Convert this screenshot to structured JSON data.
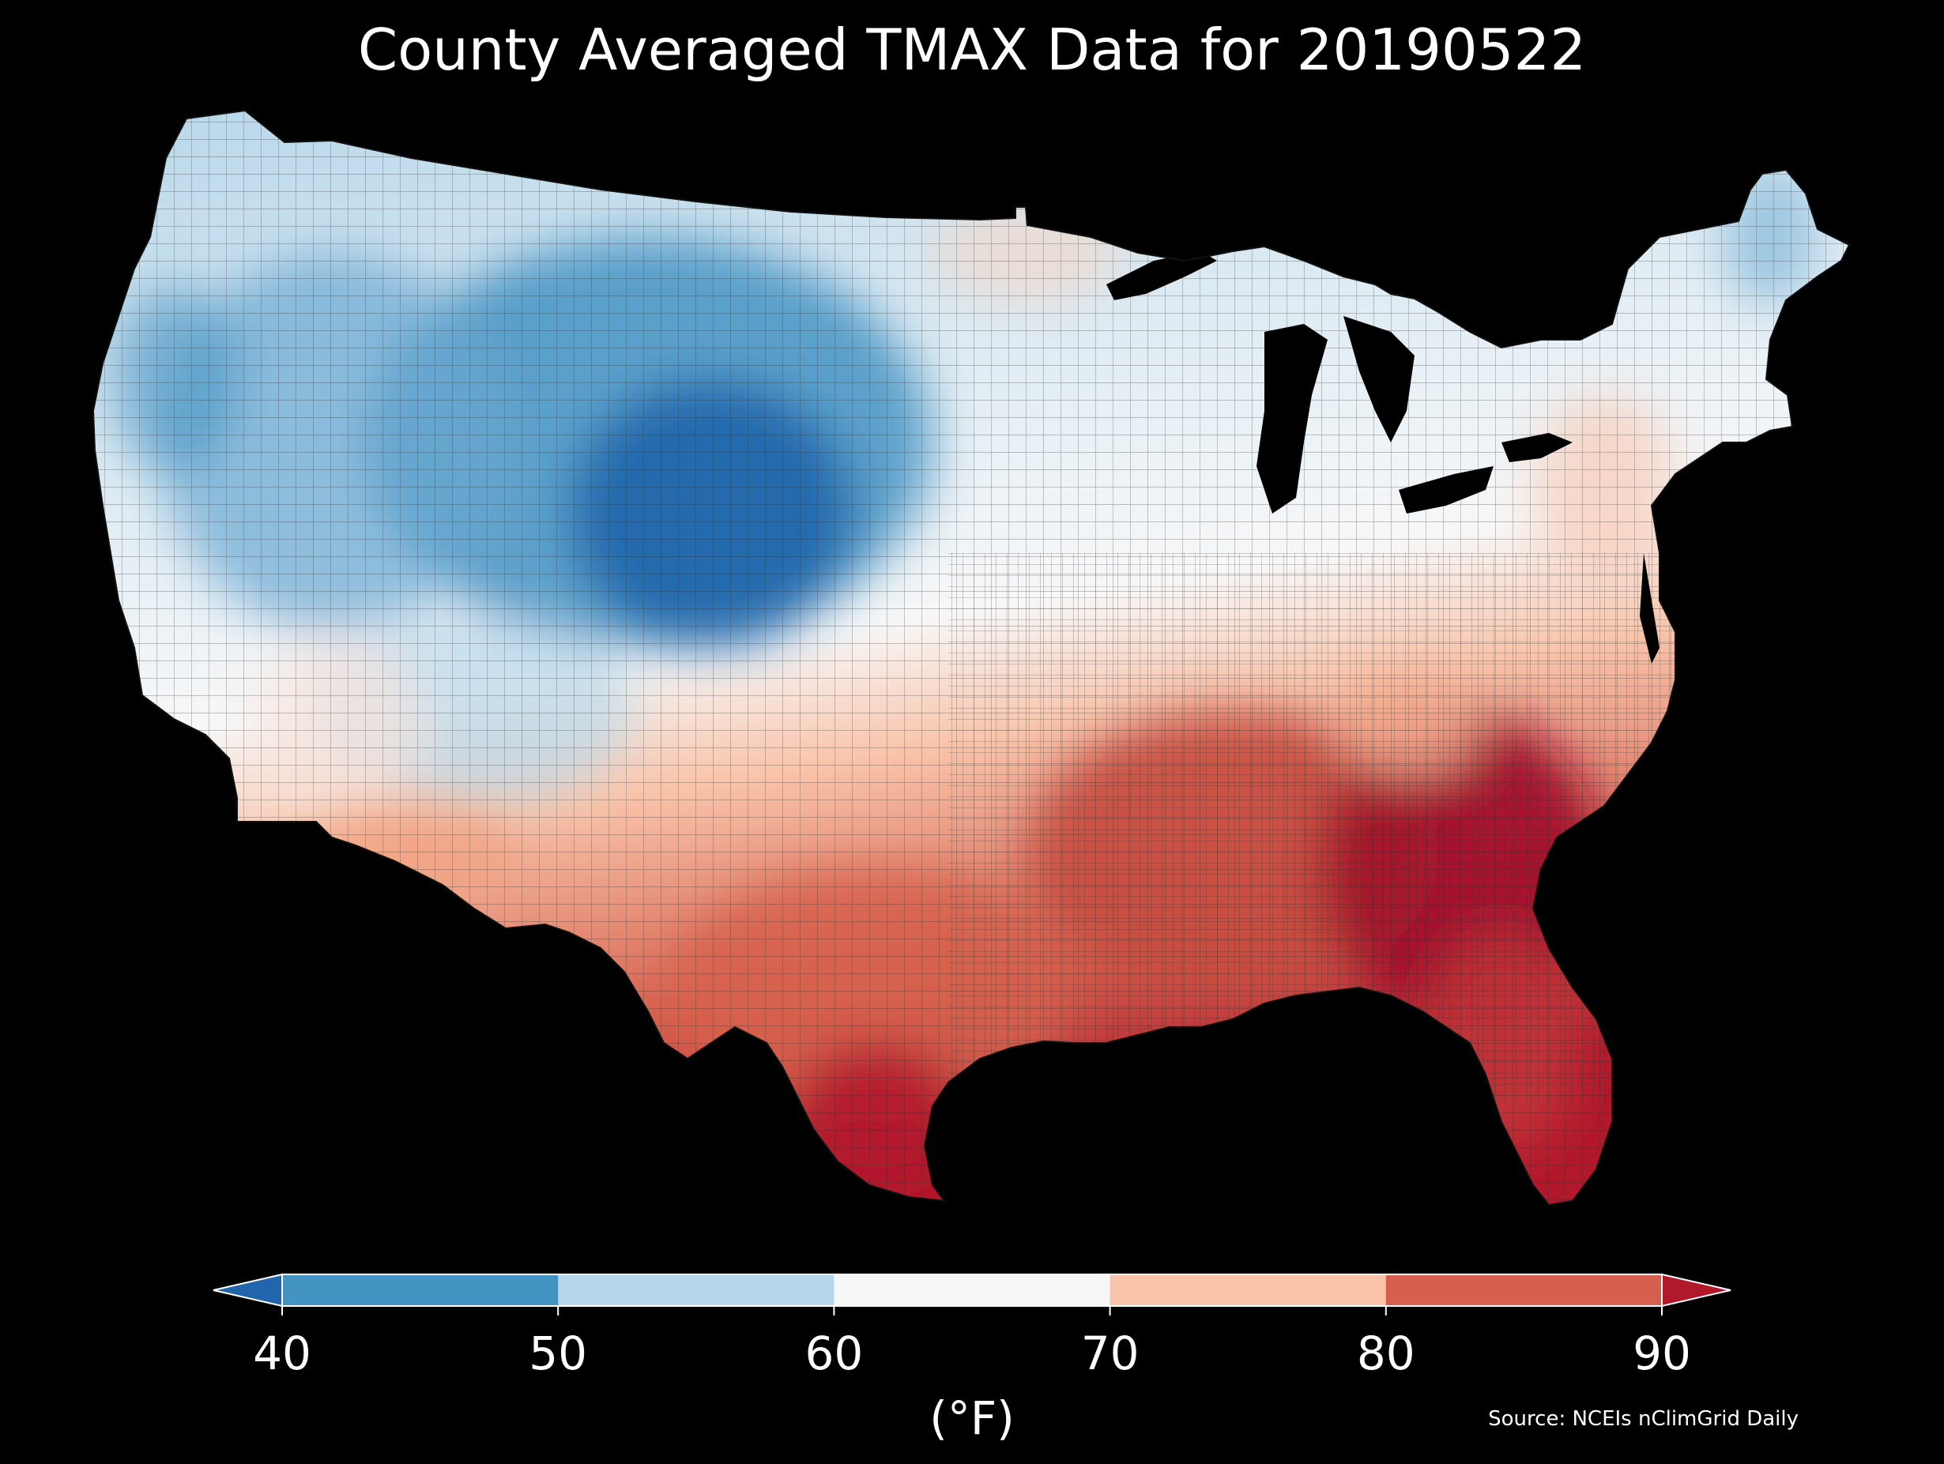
{
  "title": "County Averaged TMAX Data for 20190522",
  "colorbar": {
    "ticks": [
      "40",
      "50",
      "60",
      "70",
      "80",
      "90"
    ],
    "unit": "(°F)",
    "bins": [
      {
        "range": "<40",
        "color": "#2166ac"
      },
      {
        "range": "40-50",
        "color": "#4393c3"
      },
      {
        "range": "50-60",
        "color": "#b6d7ea"
      },
      {
        "range": "60-70",
        "color": "#f7f7f7"
      },
      {
        "range": "70-80",
        "color": "#f9c4a9"
      },
      {
        "range": "80-90",
        "color": "#d6604d"
      },
      {
        "range": ">90",
        "color": "#b2182b"
      }
    ]
  },
  "source": "Source: NCEIs nClimGrid Daily",
  "map": {
    "region": "Contiguous United States counties",
    "background": "#000000",
    "county_border_color": "#333333",
    "regional_pattern": [
      {
        "area": "Northern Rockies and Wyoming/Colorado",
        "bin": "<40 to 40-50"
      },
      {
        "area": "Pacific Northwest, Great Basin, northern Plains",
        "bin": "50-60"
      },
      {
        "area": "Upper Midwest, Ohio Valley, Great Lakes",
        "bin": "60-70"
      },
      {
        "area": "Southern Plains, Southwest, Mid-Atlantic",
        "bin": "70-80"
      },
      {
        "area": "Southeast, Gulf Coast",
        "bin": "80-90"
      },
      {
        "area": "Georgia, South Carolina, north Florida, south Texas",
        "bin": ">90"
      }
    ]
  }
}
